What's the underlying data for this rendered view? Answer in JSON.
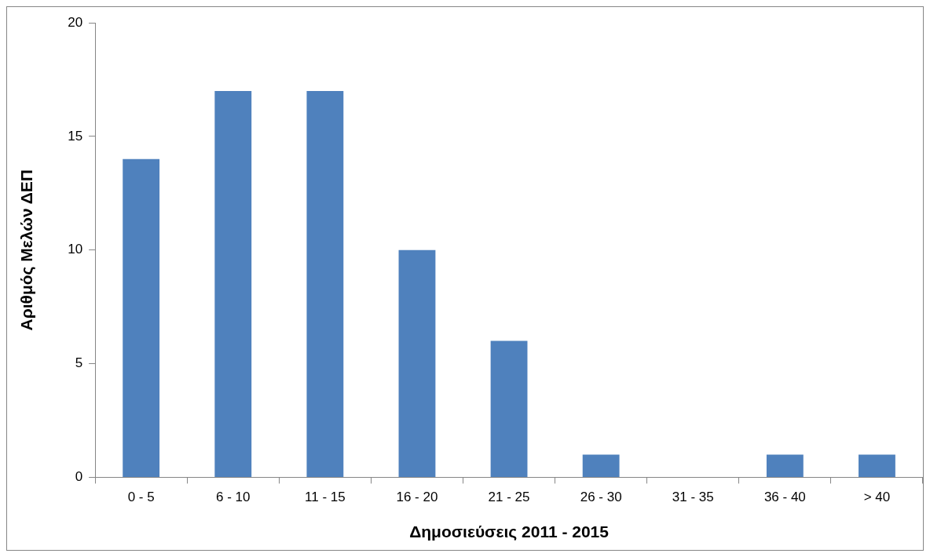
{
  "chart_data": {
    "type": "bar",
    "xlabel": "Δημοσιεύσεις 2011 - 2015",
    "ylabel": "Αριθμός Μελών ΔΕΠ",
    "categories": [
      "0 - 5",
      "6 - 10",
      "11 - 15",
      "16 - 20",
      "21 - 25",
      "26 - 30",
      "31 - 35",
      "36 - 40",
      "> 40"
    ],
    "values": [
      14,
      17,
      17,
      10,
      6,
      1,
      0,
      1,
      1
    ],
    "color": "#4f81bd",
    "ylim": [
      0,
      20
    ],
    "yticks": [
      0,
      5,
      10,
      15,
      20
    ]
  }
}
